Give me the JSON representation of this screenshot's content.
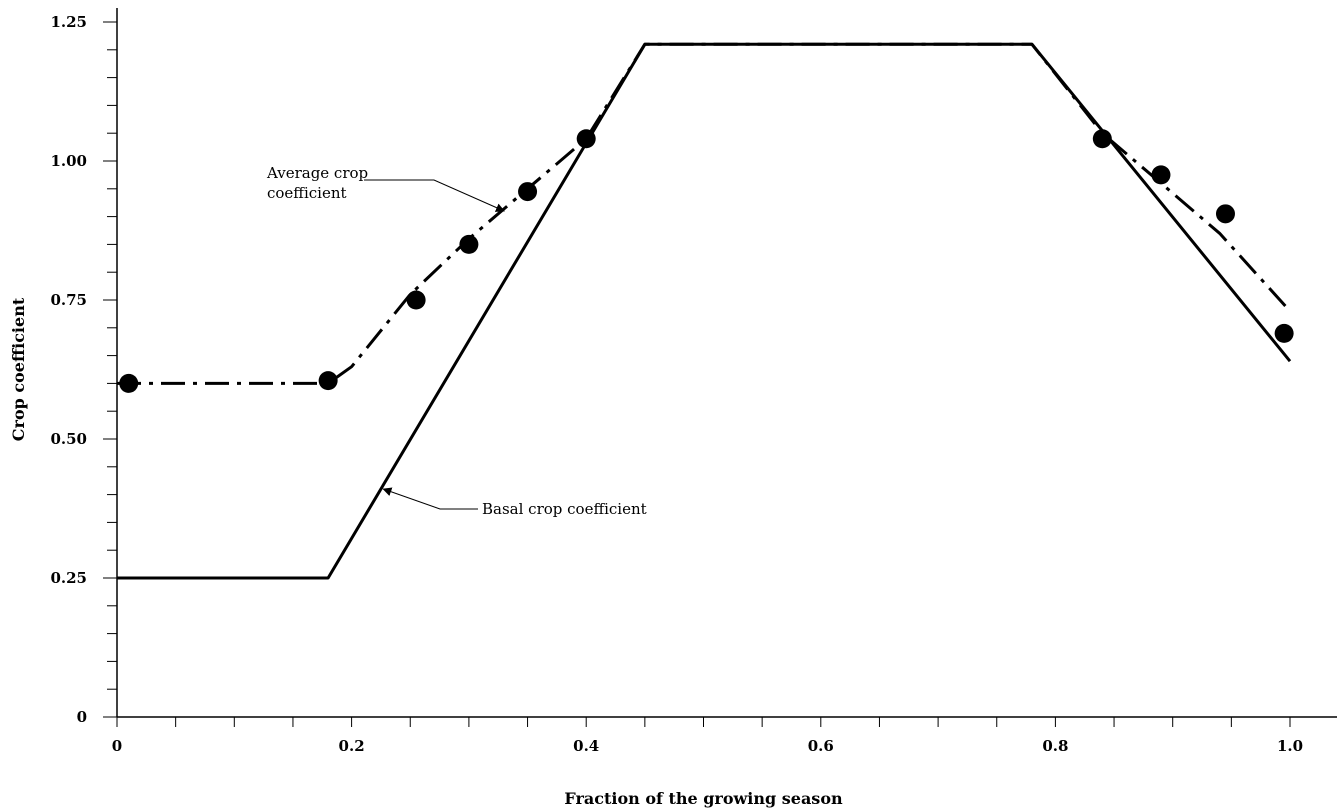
{
  "chart_data": {
    "type": "line",
    "title": "",
    "xlabel": "Fraction of the growing season",
    "ylabel": "Crop coefficient",
    "xlim": [
      0,
      1.0
    ],
    "ylim": [
      0,
      1.25
    ],
    "x_ticks": [
      0,
      0.2,
      0.4,
      0.6,
      0.8,
      1.0
    ],
    "x_tick_labels": [
      "0",
      "0.2",
      "0.4",
      "0.6",
      "0.8",
      "1.0"
    ],
    "y_ticks": [
      0,
      0.25,
      0.5,
      0.75,
      1.0,
      1.25
    ],
    "y_tick_labels": [
      "0",
      "0.25",
      "0.50",
      "0.75",
      "1.00",
      "1.25"
    ],
    "grid": false,
    "legend": "none",
    "series": [
      {
        "name": "Basal crop coefficient",
        "style": "solid",
        "x": [
          0,
          0.18,
          0.45,
          0.78,
          1.0
        ],
        "y": [
          0.25,
          0.25,
          1.21,
          1.21,
          0.64
        ]
      },
      {
        "name": "Average crop coefficient",
        "style": "dash-dot",
        "x": [
          0,
          0.18,
          0.2,
          0.25,
          0.3,
          0.35,
          0.4,
          0.45,
          0.78,
          0.84,
          0.89,
          0.94,
          1.0
        ],
        "y": [
          0.6,
          0.6,
          0.63,
          0.76,
          0.86,
          0.95,
          1.04,
          1.21,
          1.21,
          1.05,
          0.96,
          0.87,
          0.73
        ]
      }
    ],
    "observed_points": {
      "x": [
        0.01,
        0.18,
        0.255,
        0.3,
        0.35,
        0.4,
        0.84,
        0.89,
        0.945,
        0.995
      ],
      "y": [
        0.6,
        0.605,
        0.75,
        0.85,
        0.945,
        1.04,
        1.04,
        0.975,
        0.905,
        0.69
      ]
    },
    "annotations": [
      {
        "lines": [
          "Average crop",
          "coefficient"
        ],
        "points_to": [
          0.33,
          0.91
        ]
      },
      {
        "lines": [
          "Basal crop coefficient"
        ],
        "points_to": [
          0.227,
          0.41
        ]
      }
    ]
  }
}
